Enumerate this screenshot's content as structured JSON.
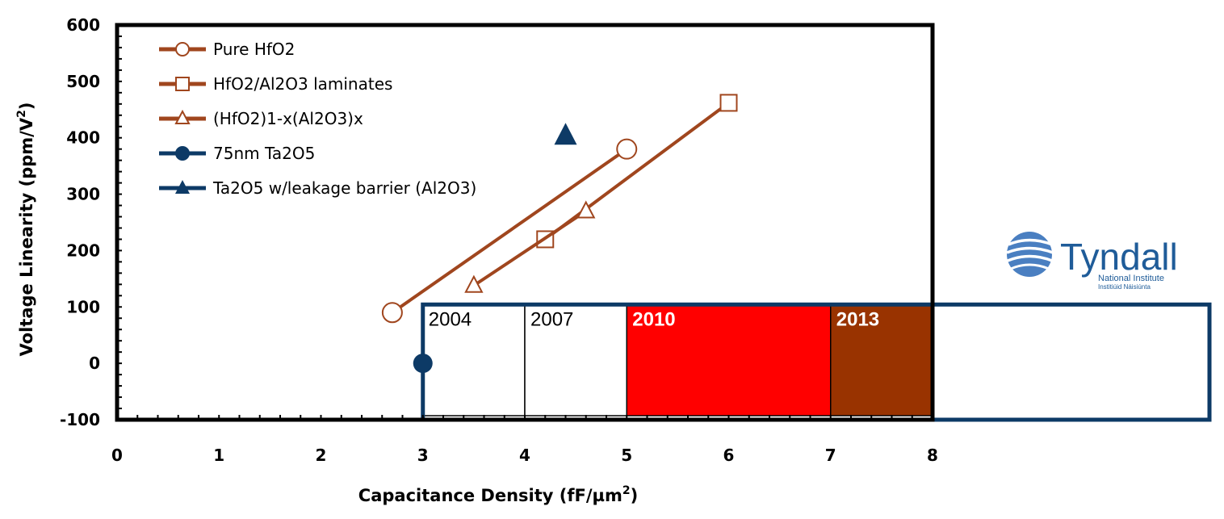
{
  "chart_data": {
    "type": "line",
    "xlabel": "Capacitance Density (fF/µm",
    "xlabel_sup": "2",
    "xlabel_end": ")",
    "ylabel": "Voltage Linearity (ppm/V",
    "ylabel_sup": "2",
    "ylabel_end": ")",
    "xlim": [
      0,
      8
    ],
    "ylim": [
      -100,
      600
    ],
    "x_ticks": [
      0,
      1,
      2,
      3,
      4,
      5,
      6,
      7,
      8
    ],
    "y_ticks": [
      -100,
      0,
      100,
      200,
      300,
      400,
      500,
      600
    ],
    "legend_position": "top-left",
    "series": [
      {
        "name": "Pure HfO2",
        "marker": "circle-open",
        "color": "#a0461e",
        "line": true,
        "points": [
          [
            2.7,
            90
          ],
          [
            5.0,
            380
          ]
        ]
      },
      {
        "name": "HfO2/Al2O3 laminates",
        "marker": "square-open",
        "color": "#a0461e",
        "line": true,
        "points": [
          [
            4.2,
            220
          ],
          [
            6.0,
            462
          ]
        ]
      },
      {
        "name": "(HfO2)1-x(Al2O3)x",
        "marker": "triangle-open",
        "color": "#a0461e",
        "line": true,
        "points": [
          [
            3.5,
            138
          ],
          [
            4.6,
            270
          ]
        ]
      },
      {
        "name": "75nm Ta2O5",
        "marker": "circle-filled",
        "color": "#0d3a66",
        "line": false,
        "points": [
          [
            3.0,
            0
          ]
        ]
      },
      {
        "name": "Ta2O5 w/leakage barrier (Al2O3)",
        "marker": "triangle-filled",
        "color": "#0d3a66",
        "line": false,
        "points": [
          [
            4.4,
            405
          ]
        ]
      }
    ],
    "year_bands": [
      {
        "label": "2004",
        "from": 3,
        "to": 4,
        "fill": "#ffffff",
        "text_color": "#000000",
        "bold": false
      },
      {
        "label": "2007",
        "from": 4,
        "to": 5,
        "fill": "#ffffff",
        "text_color": "#000000",
        "bold": false
      },
      {
        "label": "2010",
        "from": 5,
        "to": 7,
        "fill": "#ff0000",
        "text_color": "#ffffff",
        "bold": true
      },
      {
        "label": "2013",
        "from": 7,
        "to": 8,
        "fill": "#993300",
        "text_color": "#ffffff",
        "bold": true
      }
    ]
  },
  "logo": {
    "name": "Tyndall",
    "subtitle": "National Institute",
    "subtitle2": "Institiúid Náisiúnta",
    "color": "#1f5c99"
  }
}
